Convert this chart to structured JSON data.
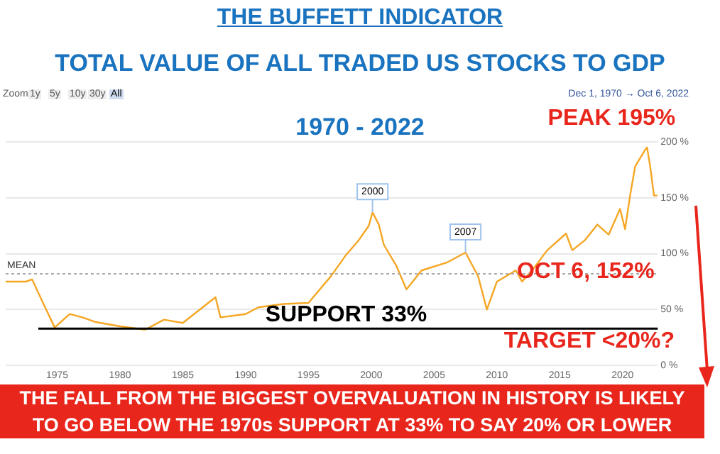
{
  "chart_data": {
    "type": "line",
    "title": "THE BUFFETT INDICATOR",
    "subtitle": "TOTAL VALUE OF ALL TRADED US STOCKS TO GDP",
    "x": [
      1970.9,
      1972.5,
      1973,
      1974,
      1974.8,
      1976,
      1977,
      1978,
      1980,
      1982,
      1983.5,
      1985,
      1987.6,
      1988,
      1990,
      1991,
      1993,
      1995,
      1996.8,
      1998,
      1999,
      1999.8,
      2000.1,
      2000.6,
      2001,
      2002,
      2002.8,
      2004,
      2006,
      2007.5,
      2008.5,
      2009.2,
      2010,
      2011.5,
      2012,
      2013,
      2014,
      2015.5,
      2016,
      2017,
      2018,
      2018.9,
      2019.8,
      2020.2,
      2020.6,
      2021,
      2021.8,
      2021.95,
      2022.2,
      2022.5,
      2022.77
    ],
    "series": [
      {
        "color": "#f5a623",
        "values": [
          75,
          75,
          77,
          53,
          34,
          46,
          43,
          39,
          35,
          32,
          41,
          38,
          61,
          43,
          46,
          52,
          55,
          56,
          80,
          99,
          112,
          125,
          137,
          126,
          108,
          89,
          68,
          85,
          92,
          101,
          80,
          50,
          75,
          85,
          75,
          88,
          103,
          118,
          103,
          112,
          126,
          117,
          140,
          122,
          152,
          178,
          193,
          195,
          178,
          152,
          152
        ]
      }
    ],
    "xlim": [
      1970.9,
      2022.8
    ],
    "xticks": [
      1975,
      1980,
      1985,
      1990,
      1995,
      2000,
      2005,
      2010,
      2015,
      2020
    ],
    "ylim": [
      0,
      200
    ],
    "yticks": [
      {
        "value": 0,
        "label": "0 %"
      },
      {
        "value": 50,
        "label": "50 %"
      },
      {
        "value": 100,
        "label": "100 %"
      },
      {
        "value": 150,
        "label": "150 %"
      },
      {
        "value": 200,
        "label": "200 %"
      }
    ],
    "ref_lines": [
      {
        "axis": "y",
        "value": 82,
        "label": "MEAN",
        "color": "#aaaaaa",
        "line_style": "dotted"
      },
      {
        "axis": "y",
        "value": 33,
        "label": "SUPPORT 33%",
        "color": "#000000",
        "line_style": "solid"
      }
    ],
    "annotations": [
      "1970 - 2022",
      "Zoom",
      "1y",
      "5y",
      "10y",
      "30y",
      "All",
      "Dec 1, 1970 → Oct 6, 2022",
      {
        "text": "2000",
        "x": 2000.1,
        "y": 137
      },
      {
        "text": "2007",
        "x": 2007.5,
        "y": 101
      },
      {
        "text": "PEAK 195%",
        "x": 2021.95,
        "y": 195
      },
      {
        "text": "OCT 6, 152%",
        "x": 2022.77,
        "y": 152
      },
      "TARGET <20%?",
      "THE FALL FROM THE BIGGEST OVERVALUATION IN HISTORY IS LIKELY\nTO GO  BELOW THE 1970s SUPPORT AT 33% TO SAY 20% OR LOWER"
    ],
    "grid": "y",
    "legend": false,
    "marker": "none",
    "line_style": "solid"
  }
}
